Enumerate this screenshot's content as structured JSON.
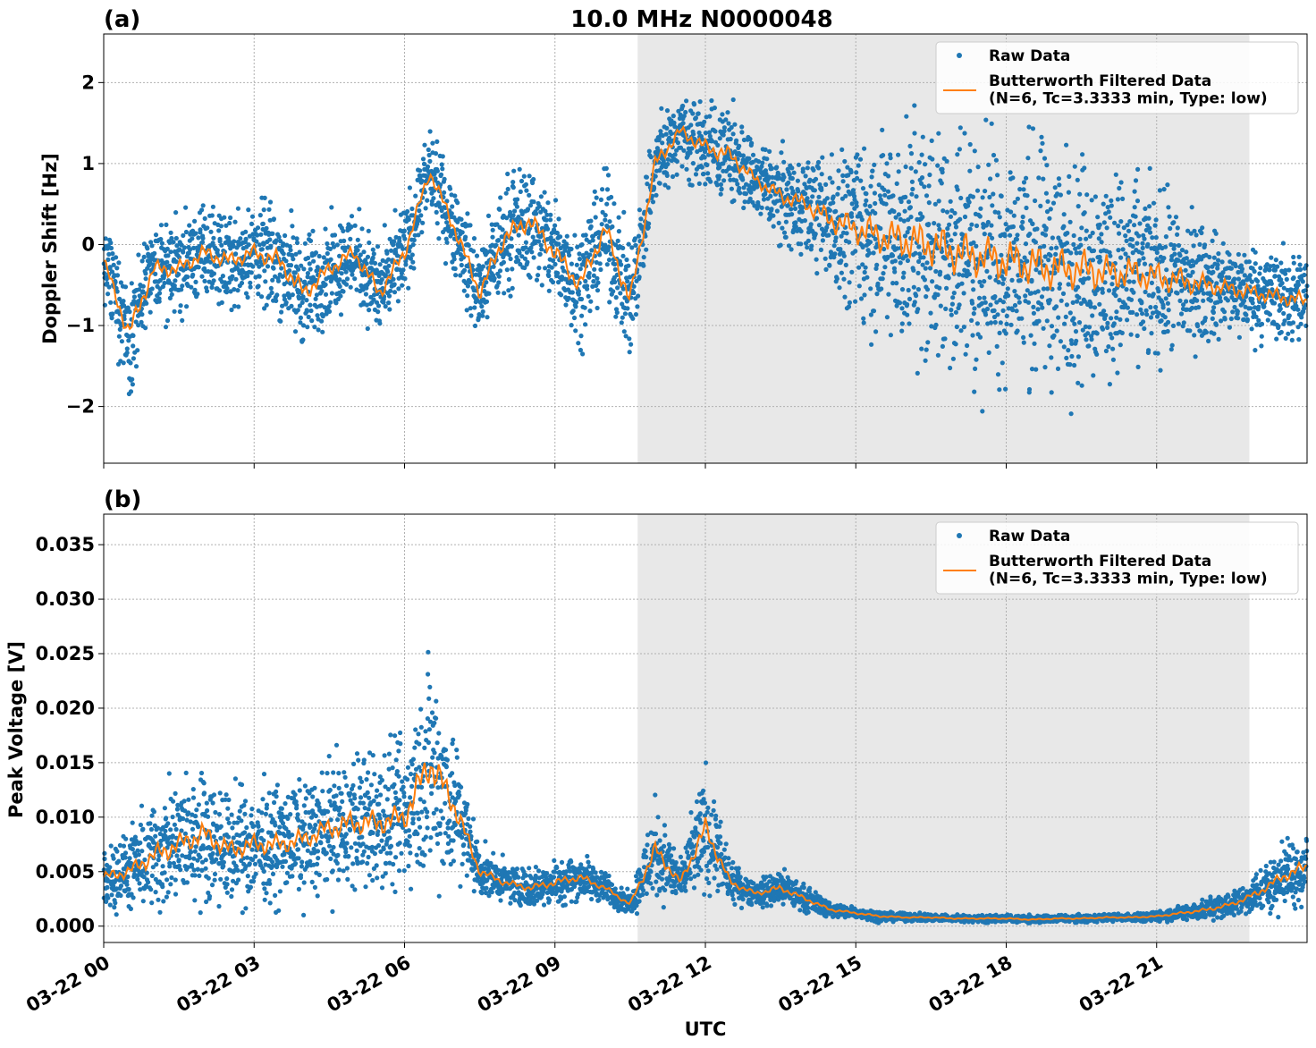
{
  "figure": {
    "title": "10.0 MHz N0000048",
    "xlabel": "UTC",
    "x_ticks": [
      "03-22 00",
      "03-22 03",
      "03-22 06",
      "03-22 09",
      "03-22 12",
      "03-22 15",
      "03-22 18",
      "03-22 21"
    ]
  },
  "colors": {
    "raw": "#1f77b4",
    "filtered": "#ff7f0e",
    "shade": "#e8e8e8"
  },
  "chart_data": [
    {
      "panel_label": "(a)",
      "type": "scatter",
      "ylabel": "Doppler Shift [Hz]",
      "xlim_hours": [
        0,
        24
      ],
      "ylim": [
        -2.7,
        2.6
      ],
      "y_ticks": [
        -2,
        -1,
        0,
        1,
        2
      ],
      "y_tick_labels": [
        "−2",
        "−1",
        "0",
        "1",
        "2"
      ],
      "shaded_interval_hours": [
        10.65,
        22.85
      ],
      "grid": true,
      "legend_placement": "top-right",
      "legend": [
        "Raw Data",
        "Butterworth Filtered Data\n(N=6, Tc=3.3333 min, Type: low)"
      ],
      "series": [
        {
          "name": "Raw Data",
          "style": "points",
          "x_hours": [
            0,
            0.5,
            1,
            1.5,
            2,
            2.5,
            3,
            3.5,
            4,
            4.5,
            5,
            5.5,
            6,
            6.5,
            7,
            7.5,
            8,
            8.5,
            9,
            9.5,
            10,
            10.5,
            11,
            11.5,
            12,
            12.5,
            13,
            13.5,
            14,
            14.5,
            15,
            15.5,
            16,
            16.5,
            17,
            17.5,
            18,
            18.5,
            19,
            19.5,
            20,
            20.5,
            21,
            21.5,
            22,
            22.5,
            23,
            23.5,
            24
          ],
          "center": [
            -0.2,
            -1.1,
            -0.3,
            -0.3,
            -0.1,
            -0.2,
            -0.1,
            -0.2,
            -0.6,
            -0.3,
            -0.1,
            -0.6,
            -0.1,
            0.9,
            0.2,
            -0.6,
            0.1,
            0.3,
            -0.1,
            -0.5,
            0.2,
            -0.7,
            1.0,
            1.4,
            1.2,
            1.1,
            0.8,
            0.6,
            0.5,
            0.3,
            0.2,
            0.1,
            0.05,
            0.0,
            -0.1,
            -0.15,
            -0.2,
            -0.25,
            -0.3,
            -0.3,
            -0.35,
            -0.35,
            -0.4,
            -0.45,
            -0.5,
            -0.55,
            -0.6,
            -0.65,
            -0.7
          ],
          "spread": [
            0.4,
            0.6,
            0.5,
            0.5,
            0.5,
            0.5,
            0.5,
            0.6,
            0.6,
            0.5,
            0.5,
            0.5,
            0.5,
            0.4,
            0.5,
            0.5,
            0.6,
            0.6,
            0.6,
            0.6,
            0.6,
            0.6,
            0.5,
            0.4,
            0.5,
            0.5,
            0.4,
            0.5,
            0.5,
            0.7,
            0.9,
            1.1,
            1.2,
            1.3,
            1.3,
            1.3,
            1.3,
            1.3,
            1.3,
            1.2,
            1.1,
            1.0,
            0.9,
            0.8,
            0.6,
            0.5,
            0.5,
            0.5,
            0.5
          ]
        },
        {
          "name": "Butterworth Filtered Data\n(N=6, Tc=3.3333 min, Type: low)",
          "style": "line",
          "x_hours": [
            0,
            0.5,
            1,
            1.5,
            2,
            2.5,
            3,
            3.5,
            4,
            4.5,
            5,
            5.5,
            6,
            6.5,
            7,
            7.5,
            8,
            8.5,
            9,
            9.5,
            10,
            10.5,
            11,
            11.5,
            12,
            12.5,
            13,
            13.5,
            14,
            14.5,
            15,
            15.5,
            16,
            16.5,
            17,
            17.5,
            18,
            18.5,
            19,
            19.5,
            20,
            20.5,
            21,
            21.5,
            22,
            22.5,
            23,
            23.5,
            24
          ],
          "y": [
            -0.2,
            -1.1,
            -0.3,
            -0.3,
            -0.1,
            -0.2,
            -0.1,
            -0.2,
            -0.6,
            -0.3,
            -0.1,
            -0.6,
            -0.1,
            0.9,
            0.2,
            -0.6,
            0.1,
            0.3,
            -0.1,
            -0.5,
            0.2,
            -0.7,
            1.0,
            1.4,
            1.2,
            1.1,
            0.8,
            0.6,
            0.5,
            0.3,
            0.2,
            0.1,
            0.05,
            0.0,
            -0.1,
            -0.15,
            -0.2,
            -0.25,
            -0.3,
            -0.3,
            -0.35,
            -0.35,
            -0.4,
            -0.45,
            -0.5,
            -0.55,
            -0.6,
            -0.65,
            -0.7
          ]
        }
      ]
    },
    {
      "panel_label": "(b)",
      "type": "scatter",
      "ylabel": "Peak Voltage [V]",
      "xlim_hours": [
        0,
        24
      ],
      "ylim": [
        -0.0015,
        0.0378
      ],
      "y_ticks": [
        0,
        0.005,
        0.01,
        0.015,
        0.02,
        0.025,
        0.03,
        0.035
      ],
      "y_tick_labels": [
        "0.000",
        "0.005",
        "0.010",
        "0.015",
        "0.020",
        "0.025",
        "0.030",
        "0.035"
      ],
      "shaded_interval_hours": [
        10.65,
        22.85
      ],
      "grid": true,
      "legend_placement": "top-right",
      "legend": [
        "Raw Data",
        "Butterworth Filtered Data\n(N=6, Tc=3.3333 min, Type: low)"
      ],
      "series": [
        {
          "name": "Raw Data",
          "style": "points",
          "x_hours": [
            0,
            0.5,
            1,
            1.5,
            2,
            2.5,
            3,
            3.5,
            4,
            4.5,
            5,
            5.5,
            6,
            6.5,
            7,
            7.5,
            8,
            8.5,
            9,
            9.5,
            10,
            10.5,
            11,
            11.5,
            12,
            12.5,
            13,
            13.5,
            14,
            14.5,
            15,
            15.5,
            16,
            16.5,
            17,
            17.5,
            18,
            18.5,
            19,
            19.5,
            20,
            20.5,
            21,
            21.5,
            22,
            22.5,
            23,
            23.5,
            24
          ],
          "center": [
            0.0045,
            0.005,
            0.0065,
            0.0075,
            0.0085,
            0.007,
            0.0075,
            0.0075,
            0.008,
            0.009,
            0.0095,
            0.0095,
            0.01,
            0.015,
            0.011,
            0.005,
            0.004,
            0.0035,
            0.004,
            0.0045,
            0.0035,
            0.002,
            0.007,
            0.004,
            0.009,
            0.004,
            0.003,
            0.0035,
            0.0025,
            0.0015,
            0.0012,
            0.0009,
            0.0008,
            0.0008,
            0.0007,
            0.0007,
            0.0007,
            0.0006,
            0.0007,
            0.0007,
            0.0008,
            0.0008,
            0.0009,
            0.0012,
            0.0015,
            0.002,
            0.003,
            0.0045,
            0.0055
          ],
          "spread": [
            0.0025,
            0.003,
            0.0045,
            0.005,
            0.005,
            0.0045,
            0.0045,
            0.0045,
            0.0045,
            0.005,
            0.0055,
            0.0055,
            0.006,
            0.009,
            0.006,
            0.002,
            0.0015,
            0.0015,
            0.0018,
            0.0018,
            0.0012,
            0.0008,
            0.004,
            0.0015,
            0.005,
            0.0015,
            0.001,
            0.0015,
            0.001,
            0.0006,
            0.0005,
            0.0004,
            0.0003,
            0.0003,
            0.0003,
            0.0003,
            0.0003,
            0.0003,
            0.0003,
            0.0003,
            0.0003,
            0.0003,
            0.0004,
            0.0006,
            0.0008,
            0.001,
            0.0015,
            0.0025,
            0.003
          ]
        },
        {
          "name": "Butterworth Filtered Data\n(N=6, Tc=3.3333 min, Type: low)",
          "style": "line",
          "x_hours": [
            0,
            0.5,
            1,
            1.5,
            2,
            2.5,
            3,
            3.5,
            4,
            4.5,
            5,
            5.5,
            6,
            6.5,
            7,
            7.5,
            8,
            8.5,
            9,
            9.5,
            10,
            10.5,
            11,
            11.5,
            12,
            12.5,
            13,
            13.5,
            14,
            14.5,
            15,
            15.5,
            16,
            16.5,
            17,
            17.5,
            18,
            18.5,
            19,
            19.5,
            20,
            20.5,
            21,
            21.5,
            22,
            22.5,
            23,
            23.5,
            24
          ],
          "y": [
            0.0045,
            0.005,
            0.0065,
            0.0075,
            0.0085,
            0.007,
            0.0075,
            0.0075,
            0.008,
            0.009,
            0.0095,
            0.0095,
            0.01,
            0.015,
            0.011,
            0.005,
            0.004,
            0.0035,
            0.004,
            0.0045,
            0.0035,
            0.002,
            0.007,
            0.004,
            0.009,
            0.004,
            0.003,
            0.0035,
            0.0025,
            0.0015,
            0.0012,
            0.0009,
            0.0008,
            0.0008,
            0.0007,
            0.0007,
            0.0007,
            0.0006,
            0.0007,
            0.0007,
            0.0008,
            0.0008,
            0.0009,
            0.0012,
            0.0015,
            0.002,
            0.003,
            0.0045,
            0.0055
          ]
        }
      ]
    }
  ]
}
